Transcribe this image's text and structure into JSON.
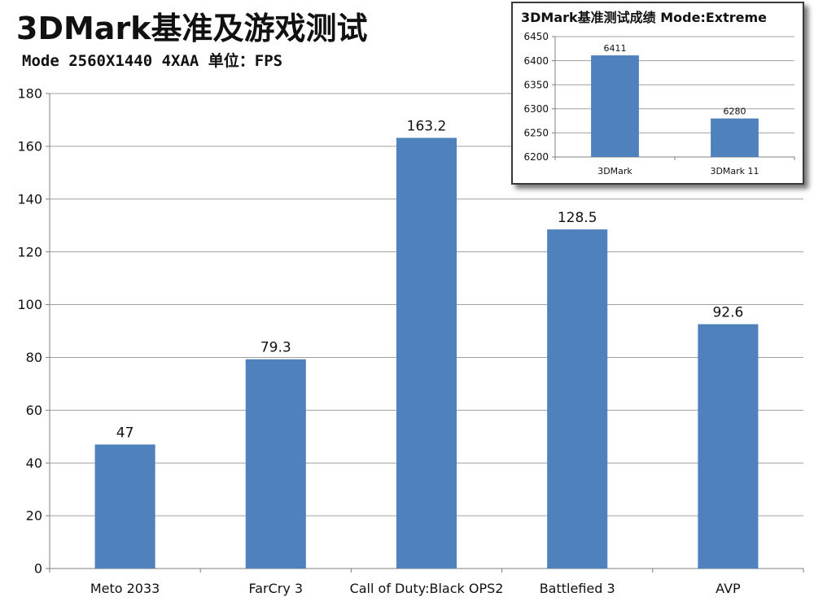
{
  "title": "3DMark基准及游戏测试",
  "subtitle": "Mode 2560X1440 4XAA 单位：FPS",
  "colors": {
    "bar": "#4f81bd",
    "axis": "#7f7f7f",
    "grid": "#a0a0a0",
    "text": "#111111"
  },
  "chart_data": [
    {
      "type": "bar",
      "categories": [
        "Meto 2033",
        "FarCry 3",
        "Call of Duty:Black OPS2",
        "Battlefied 3",
        "AVP"
      ],
      "values": [
        47,
        79.3,
        163.2,
        128.5,
        92.6
      ],
      "value_labels": [
        "47",
        "79.3",
        "163.2",
        "128.5",
        "92.6"
      ],
      "ylim": [
        0,
        180
      ],
      "yticks": [
        0,
        20,
        40,
        60,
        80,
        100,
        120,
        140,
        160,
        180
      ],
      "grid": true
    },
    {
      "type": "bar",
      "title": "3DMark基准测试成绩  Mode:Extreme",
      "categories": [
        "3DMark",
        "3DMark 11"
      ],
      "values": [
        6411,
        6280
      ],
      "value_labels": [
        "6411",
        "6280"
      ],
      "ylim": [
        6200,
        6450
      ],
      "yticks": [
        6200,
        6250,
        6300,
        6350,
        6400,
        6450
      ],
      "grid": true
    }
  ]
}
